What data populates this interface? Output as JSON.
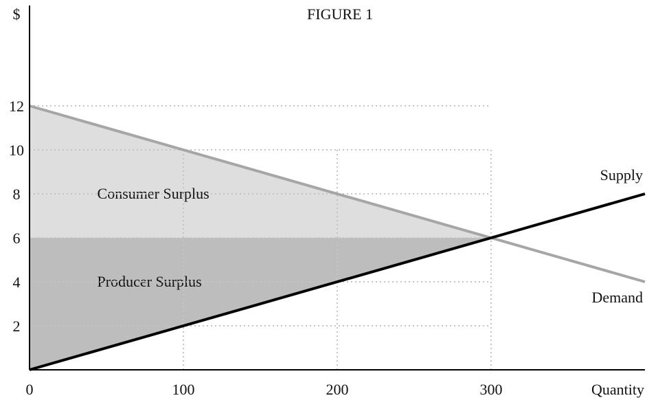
{
  "chart_data": {
    "type": "line",
    "title": "FIGURE 1",
    "ylabel": "$",
    "xlabel": "Quantity",
    "x_ticks": [
      0,
      100,
      200,
      300
    ],
    "y_ticks": [
      2,
      4,
      6,
      8,
      10,
      12
    ],
    "xlim": [
      0,
      400
    ],
    "ylim": [
      0,
      12
    ],
    "grid": "dotted reference lines",
    "series": [
      {
        "name": "Supply",
        "x": [
          0,
          400
        ],
        "y": [
          0,
          8
        ],
        "color": "#000000"
      },
      {
        "name": "Demand",
        "x": [
          0,
          400
        ],
        "y": [
          12,
          4
        ],
        "color": "#a6a6a6"
      }
    ],
    "equilibrium": {
      "x": 300,
      "y": 6
    },
    "regions": [
      {
        "label": "Consumer Surplus",
        "points": [
          [
            0,
            12
          ],
          [
            300,
            6
          ],
          [
            0,
            6
          ]
        ],
        "color": "#dedede"
      },
      {
        "label": "Producer Surplus",
        "points": [
          [
            0,
            6
          ],
          [
            300,
            6
          ],
          [
            0,
            0
          ]
        ],
        "color": "#bdbdbd"
      }
    ]
  }
}
